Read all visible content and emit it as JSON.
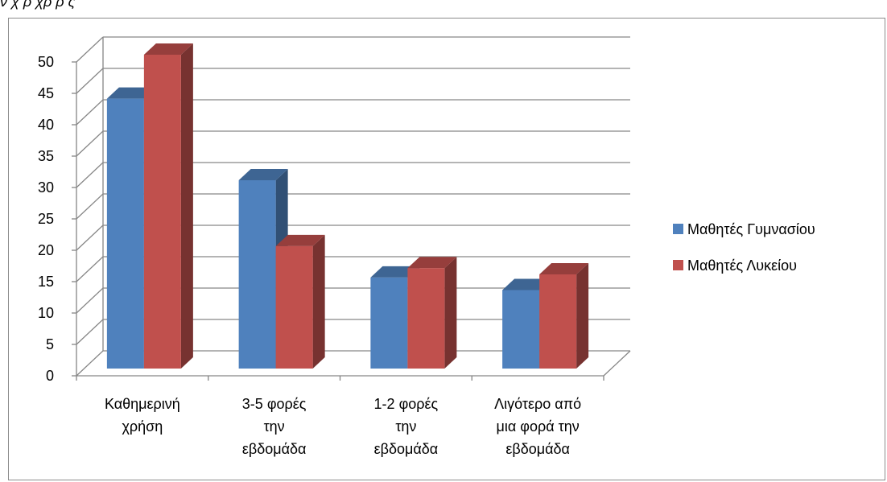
{
  "caption_fragment": "ν χ  ρ  χρ  ρ  ς",
  "chart_data": {
    "type": "bar",
    "categories": [
      [
        "Καθημερινή",
        "χρήση"
      ],
      [
        "3-5 φορές",
        "την",
        "εβδομάδα"
      ],
      [
        "1-2 φορές",
        "την",
        "εβδομάδα"
      ],
      [
        "Λιγότερο από",
        "μια φορά την",
        "εβδομάδα"
      ]
    ],
    "series": [
      {
        "name": "Μαθητές Γυμνασίου",
        "values": [
          43,
          30,
          14.5,
          12.5
        ],
        "color": "#4f81bd"
      },
      {
        "name": "Μαθητές Λυκείου",
        "values": [
          50,
          19.5,
          16,
          15
        ],
        "color": "#c0504d"
      }
    ],
    "ylim": [
      0,
      50
    ],
    "yticks": [
      0,
      5,
      10,
      15,
      20,
      25,
      30,
      35,
      40,
      45,
      50
    ],
    "grid": true,
    "three_d": true,
    "legend_position": "right"
  }
}
